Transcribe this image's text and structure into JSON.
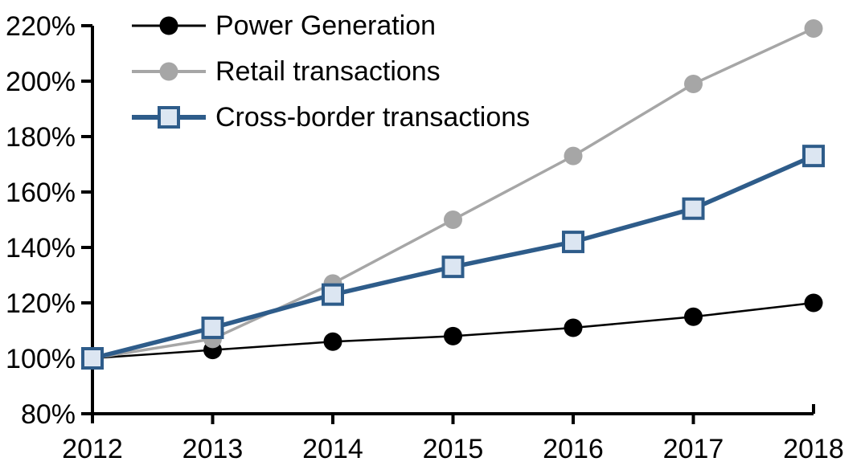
{
  "chart_data": {
    "type": "line",
    "title": "",
    "xlabel": "",
    "ylabel": "",
    "categories": [
      "2012",
      "2013",
      "2014",
      "2015",
      "2016",
      "2017",
      "2018"
    ],
    "series": [
      {
        "name": "Power Generation",
        "color": "#000000",
        "marker": "circle",
        "marker_fill": "#000000",
        "marker_stroke": "#000000",
        "line_width": 2.5,
        "legend_line_width": 3,
        "values": [
          100,
          103,
          106,
          108,
          111,
          115,
          120
        ]
      },
      {
        "name": "Retail transactions",
        "color": "#A6A6A6",
        "marker": "circle",
        "marker_fill": "#A6A6A6",
        "marker_stroke": "#A6A6A6",
        "line_width": 3.5,
        "legend_line_width": 4,
        "values": [
          100,
          107,
          127,
          150,
          173,
          199,
          219
        ]
      },
      {
        "name": "Cross-border transactions",
        "color": "#2E5C8A",
        "marker": "square",
        "marker_fill": "#DCE6F2",
        "marker_stroke": "#2E5C8A",
        "line_width": 5.5,
        "legend_line_width": 6,
        "values": [
          100,
          111,
          123,
          133,
          142,
          154,
          173
        ]
      }
    ],
    "ylim": [
      80,
      220
    ],
    "ytick_step": 20,
    "ytick_labels": [
      "80%",
      "100%",
      "120%",
      "140%",
      "160%",
      "180%",
      "200%",
      "220%"
    ],
    "axis_color": "#000000",
    "grid": false,
    "legend_position": "top-left"
  }
}
